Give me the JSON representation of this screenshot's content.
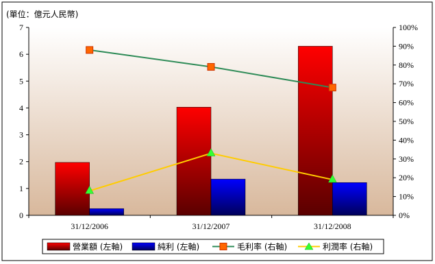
{
  "chart_data": {
    "type": "bar",
    "unit_label": "(單位：億元人民幣)",
    "categories": [
      "31/12/2006",
      "31/12/2007",
      "31/12/2008"
    ],
    "left_axis": {
      "min": 0,
      "max": 7,
      "ticks": [
        "0",
        "1",
        "2",
        "3",
        "4",
        "5",
        "6",
        "7"
      ]
    },
    "right_axis": {
      "min": 0,
      "max": 100,
      "ticks": [
        "0%",
        "10%",
        "20%",
        "30%",
        "40%",
        "50%",
        "60%",
        "70%",
        "80%",
        "90%",
        "100%"
      ]
    },
    "series": [
      {
        "name": "營業額 (左軸)",
        "kind": "bar",
        "axis": "left",
        "color": "#ff0000",
        "values": [
          1.97,
          4.03,
          6.3
        ]
      },
      {
        "name": "純利 (左軸)",
        "kind": "bar",
        "axis": "left",
        "color": "#0000ff",
        "values": [
          0.25,
          1.35,
          1.22
        ]
      },
      {
        "name": "毛利率 (右軸)",
        "kind": "line",
        "axis": "right",
        "color": "#2e8b57",
        "marker": "square",
        "marker_color": "#ff6600",
        "values": [
          88,
          79,
          68
        ]
      },
      {
        "name": "利潤率 (右軸)",
        "kind": "line",
        "axis": "right",
        "color": "#ffcc00",
        "marker": "triangle",
        "marker_color": "#33ff33",
        "values": [
          13,
          33,
          19
        ]
      }
    ],
    "grid": false,
    "legend_position": "bottom"
  }
}
